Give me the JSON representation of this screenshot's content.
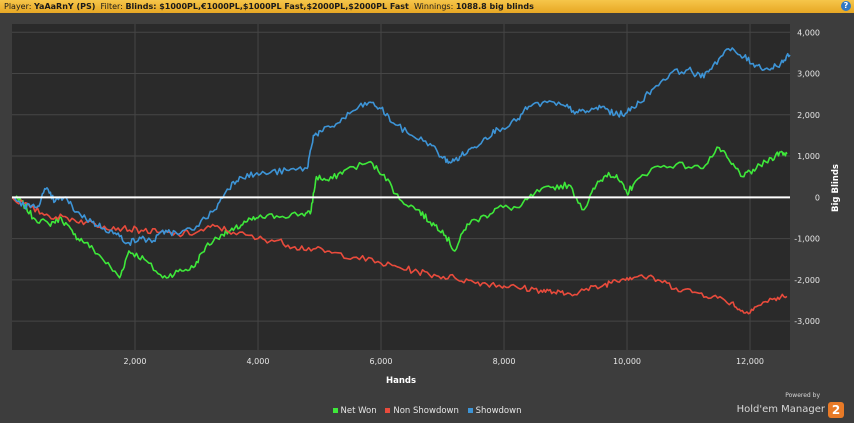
{
  "header": {
    "player_label": "Player:",
    "player_value": "YaAaRnY (PS)",
    "filter_label": "Filter:",
    "filter_value": "Blinds: $1000PL,€1000PL,$1000PL Fast,$2000PL,$2000PL Fast",
    "winnings_label": "Winnings:",
    "winnings_value": "1088.8 big blinds",
    "help_glyph": "?"
  },
  "branding": {
    "powered_by": "Powered by",
    "product": "Hold'em Manager",
    "version": "2"
  },
  "chart_data": {
    "type": "line",
    "title": "",
    "xlabel": "Hands",
    "ylabel": "Big Blinds",
    "xlim": [
      0,
      12650
    ],
    "ylim": [
      -3700,
      4200
    ],
    "x_ticks": [
      2000,
      4000,
      6000,
      8000,
      10000,
      12000
    ],
    "x_tick_labels": [
      "2,000",
      "4,000",
      "6,000",
      "8,000",
      "10,000",
      "12,000"
    ],
    "y_ticks": [
      4000,
      3000,
      2000,
      1000,
      0,
      -1000,
      -2000,
      -3000
    ],
    "y_tick_labels": [
      "4,000",
      "3,000",
      "2,000",
      "1,000",
      "0",
      "-1,000",
      "-2,000",
      "-3,000"
    ],
    "grid": true,
    "legend_position": "bottom-center",
    "series": [
      {
        "name": "Net Won",
        "color": "#3ee83a",
        "points": [
          [
            0,
            0
          ],
          [
            150,
            -100
          ],
          [
            350,
            -500
          ],
          [
            600,
            -650
          ],
          [
            800,
            -500
          ],
          [
            1000,
            -900
          ],
          [
            1200,
            -1100
          ],
          [
            1450,
            -1450
          ],
          [
            1750,
            -1950
          ],
          [
            1900,
            -1300
          ],
          [
            2150,
            -1500
          ],
          [
            2450,
            -1950
          ],
          [
            2700,
            -1800
          ],
          [
            2950,
            -1700
          ],
          [
            3150,
            -1200
          ],
          [
            3400,
            -900
          ],
          [
            3600,
            -800
          ],
          [
            3800,
            -600
          ],
          [
            4000,
            -500
          ],
          [
            4300,
            -450
          ],
          [
            4700,
            -400
          ],
          [
            4850,
            -400
          ],
          [
            4950,
            500
          ],
          [
            5150,
            400
          ],
          [
            5400,
            650
          ],
          [
            5800,
            850
          ],
          [
            6050,
            550
          ],
          [
            6300,
            -50
          ],
          [
            6600,
            -300
          ],
          [
            6800,
            -600
          ],
          [
            7000,
            -800
          ],
          [
            7200,
            -1300
          ],
          [
            7400,
            -650
          ],
          [
            7700,
            -450
          ],
          [
            7900,
            -250
          ],
          [
            8250,
            -250
          ],
          [
            8500,
            100
          ],
          [
            8800,
            250
          ],
          [
            9050,
            300
          ],
          [
            9300,
            -300
          ],
          [
            9500,
            300
          ],
          [
            9700,
            600
          ],
          [
            9850,
            450
          ],
          [
            10000,
            100
          ],
          [
            10100,
            300
          ],
          [
            10400,
            700
          ],
          [
            10800,
            800
          ],
          [
            11200,
            700
          ],
          [
            11500,
            1200
          ],
          [
            11700,
            800
          ],
          [
            11900,
            500
          ],
          [
            12100,
            700
          ],
          [
            12350,
            950
          ],
          [
            12500,
            1100
          ],
          [
            12600,
            1050
          ]
        ]
      },
      {
        "name": "Non Showdown",
        "color": "#e94b3c",
        "points": [
          [
            0,
            0
          ],
          [
            300,
            -250
          ],
          [
            600,
            -450
          ],
          [
            900,
            -500
          ],
          [
            1200,
            -600
          ],
          [
            1500,
            -700
          ],
          [
            1800,
            -750
          ],
          [
            2100,
            -800
          ],
          [
            2400,
            -850
          ],
          [
            2700,
            -900
          ],
          [
            3000,
            -850
          ],
          [
            3300,
            -700
          ],
          [
            3600,
            -850
          ],
          [
            4000,
            -1000
          ],
          [
            4300,
            -1050
          ],
          [
            4600,
            -1200
          ],
          [
            4900,
            -1250
          ],
          [
            5200,
            -1350
          ],
          [
            5600,
            -1450
          ],
          [
            6000,
            -1600
          ],
          [
            6300,
            -1700
          ],
          [
            6600,
            -1800
          ],
          [
            6900,
            -1900
          ],
          [
            7200,
            -1950
          ],
          [
            7500,
            -2050
          ],
          [
            7800,
            -2100
          ],
          [
            8000,
            -2150
          ],
          [
            8300,
            -2200
          ],
          [
            8600,
            -2250
          ],
          [
            8800,
            -2300
          ],
          [
            9000,
            -2350
          ],
          [
            9300,
            -2250
          ],
          [
            9600,
            -2150
          ],
          [
            9800,
            -2000
          ],
          [
            10000,
            -1950
          ],
          [
            10200,
            -1900
          ],
          [
            10500,
            -2000
          ],
          [
            10800,
            -2200
          ],
          [
            11100,
            -2300
          ],
          [
            11400,
            -2400
          ],
          [
            11700,
            -2550
          ],
          [
            11900,
            -2800
          ],
          [
            12100,
            -2650
          ],
          [
            12400,
            -2450
          ],
          [
            12600,
            -2400
          ]
        ]
      },
      {
        "name": "Showdown",
        "color": "#3d94d6",
        "points": [
          [
            0,
            0
          ],
          [
            200,
            -200
          ],
          [
            400,
            -250
          ],
          [
            550,
            200
          ],
          [
            700,
            -100
          ],
          [
            850,
            0
          ],
          [
            1050,
            -350
          ],
          [
            1300,
            -600
          ],
          [
            1500,
            -750
          ],
          [
            1700,
            -900
          ],
          [
            1900,
            -1100
          ],
          [
            2100,
            -1000
          ],
          [
            2300,
            -1050
          ],
          [
            2500,
            -800
          ],
          [
            2700,
            -900
          ],
          [
            3000,
            -700
          ],
          [
            3300,
            -300
          ],
          [
            3500,
            200
          ],
          [
            3700,
            500
          ],
          [
            3950,
            550
          ],
          [
            4200,
            600
          ],
          [
            4500,
            650
          ],
          [
            4800,
            700
          ],
          [
            4900,
            1500
          ],
          [
            5050,
            1600
          ],
          [
            5300,
            1800
          ],
          [
            5550,
            2100
          ],
          [
            5800,
            2300
          ],
          [
            6000,
            2150
          ],
          [
            6200,
            1800
          ],
          [
            6500,
            1500
          ],
          [
            6800,
            1300
          ],
          [
            7000,
            950
          ],
          [
            7150,
            850
          ],
          [
            7300,
            1000
          ],
          [
            7500,
            1200
          ],
          [
            7700,
            1450
          ],
          [
            7900,
            1650
          ],
          [
            8200,
            1850
          ],
          [
            8400,
            2200
          ],
          [
            8700,
            2300
          ],
          [
            9000,
            2200
          ],
          [
            9200,
            2050
          ],
          [
            9400,
            2100
          ],
          [
            9600,
            2200
          ],
          [
            9800,
            2000
          ],
          [
            10000,
            2050
          ],
          [
            10200,
            2300
          ],
          [
            10400,
            2600
          ],
          [
            10700,
            3000
          ],
          [
            11000,
            3100
          ],
          [
            11200,
            2900
          ],
          [
            11400,
            3200
          ],
          [
            11650,
            3600
          ],
          [
            11900,
            3400
          ],
          [
            12100,
            3200
          ],
          [
            12300,
            3100
          ],
          [
            12500,
            3250
          ],
          [
            12650,
            3450
          ]
        ]
      }
    ]
  }
}
